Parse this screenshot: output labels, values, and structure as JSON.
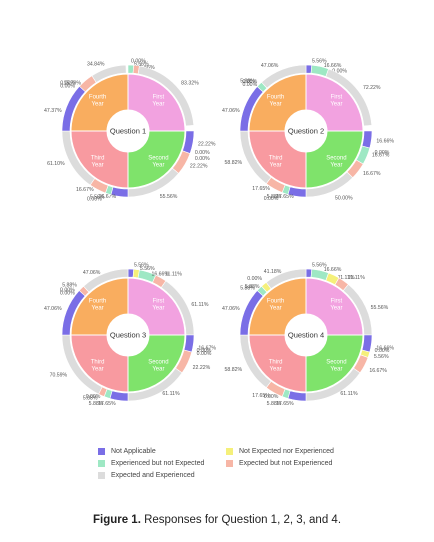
{
  "caption": {
    "label": "Figure 1.",
    "text": "Responses for Question 1, 2, 3, and 4."
  },
  "colors": {
    "first_year": "#f2a2e0",
    "second_year": "#7fe36b",
    "third_year": "#f89aa0",
    "fourth_year": "#f9ad5f",
    "not_applicable": "#7a6ee6",
    "experienced_not_expected": "#9ee8c4",
    "not_expected_nor_experienced": "#f5f07a",
    "expected_not_experienced": "#f7b6a6",
    "expected_and_experienced": "#dcdcdc"
  },
  "legend": [
    {
      "key": "not_applicable",
      "label": "Not Applicable"
    },
    {
      "key": "not_expected_nor_experienced",
      "label": "Not Expected nor Experienced"
    },
    {
      "key": "experienced_not_expected",
      "label": "Experienced but not Expected"
    },
    {
      "key": "expected_not_experienced",
      "label": "Expected but not Experienced"
    },
    {
      "key": "expected_and_experienced",
      "label": "Expected and Experienced"
    }
  ],
  "chart_data": [
    {
      "type": "pie",
      "title": "Question 1",
      "inner": [
        {
          "label": "First Year",
          "value": 25,
          "color_key": "first_year"
        },
        {
          "label": "Second Year",
          "value": 25,
          "color_key": "second_year"
        },
        {
          "label": "Third Year",
          "value": 25,
          "color_key": "third_year"
        },
        {
          "label": "Fourth Year",
          "value": 25,
          "color_key": "fourth_year"
        }
      ],
      "outer": [
        {
          "label": "0.00%",
          "pct": 0.0,
          "color_key": "not_applicable",
          "year": "First Year"
        },
        {
          "label": "5.56%",
          "pct": 5.56,
          "color_key": "experienced_not_expected",
          "year": "First Year"
        },
        {
          "label": "5.56%",
          "pct": 5.56,
          "color_key": "expected_not_experienced",
          "year": "First Year"
        },
        {
          "label": "83.32%",
          "pct": 83.32,
          "color_key": "expected_and_experienced",
          "year": "First Year"
        },
        {
          "label": "22.22%",
          "pct": 22.22,
          "color_key": "not_applicable",
          "year": "Second Year"
        },
        {
          "label": "0.00%",
          "pct": 0.0,
          "color_key": "experienced_not_expected",
          "year": "Second Year"
        },
        {
          "label": "0.00%",
          "pct": 0.0,
          "color_key": "not_expected_nor_experienced",
          "year": "Second Year"
        },
        {
          "label": "22.22%",
          "pct": 22.22,
          "color_key": "expected_not_experienced",
          "year": "Second Year"
        },
        {
          "label": "55.56%",
          "pct": 55.56,
          "color_key": "expected_and_experienced",
          "year": "Second Year"
        },
        {
          "label": "16.67%",
          "pct": 16.67,
          "color_key": "not_applicable",
          "year": "Third Year"
        },
        {
          "label": "5.56%",
          "pct": 5.56,
          "color_key": "experienced_not_expected",
          "year": "Third Year"
        },
        {
          "label": "0.00%",
          "pct": 0.0,
          "color_key": "not_expected_nor_experienced",
          "year": "Third Year"
        },
        {
          "label": "16.67%",
          "pct": 16.67,
          "color_key": "expected_not_experienced",
          "year": "Third Year"
        },
        {
          "label": "61.10%",
          "pct": 61.1,
          "color_key": "expected_and_experienced",
          "year": "Third Year"
        },
        {
          "label": "47.37%",
          "pct": 47.37,
          "color_key": "not_applicable",
          "year": "Fourth Year"
        },
        {
          "label": "0.00%",
          "pct": 0.0,
          "color_key": "experienced_not_expected",
          "year": "Fourth Year"
        },
        {
          "label": "0.00%",
          "pct": 0.0,
          "color_key": "not_expected_nor_experienced",
          "year": "Fourth Year"
        },
        {
          "label": "15.79%",
          "pct": 15.79,
          "color_key": "expected_not_experienced",
          "year": "Fourth Year"
        },
        {
          "label": "34.84%",
          "pct": 34.84,
          "color_key": "expected_and_experienced",
          "year": "Fourth Year"
        }
      ]
    },
    {
      "type": "pie",
      "title": "Question 2",
      "inner": [
        {
          "label": "First Year",
          "value": 25,
          "color_key": "first_year"
        },
        {
          "label": "Second Year",
          "value": 25,
          "color_key": "second_year"
        },
        {
          "label": "Third Year",
          "value": 25,
          "color_key": "third_year"
        },
        {
          "label": "Fourth Year",
          "value": 25,
          "color_key": "fourth_year"
        }
      ],
      "outer": [
        {
          "label": "5.56%",
          "pct": 5.56,
          "color_key": "not_applicable",
          "year": "First Year"
        },
        {
          "label": "16.66%",
          "pct": 16.66,
          "color_key": "experienced_not_expected",
          "year": "First Year"
        },
        {
          "label": "0.00%",
          "pct": 0.0,
          "color_key": "expected_not_experienced",
          "year": "First Year"
        },
        {
          "label": "72.22%",
          "pct": 72.22,
          "color_key": "expected_and_experienced",
          "year": "First Year"
        },
        {
          "label": "16.66%",
          "pct": 16.66,
          "color_key": "not_applicable",
          "year": "Second Year"
        },
        {
          "label": "0.00%",
          "pct": 0.0,
          "color_key": "not_expected_nor_experienced",
          "year": "Second Year"
        },
        {
          "label": "16.67%",
          "pct": 16.67,
          "color_key": "experienced_not_expected",
          "year": "Second Year"
        },
        {
          "label": "16.67%",
          "pct": 16.67,
          "color_key": "expected_not_experienced",
          "year": "Second Year"
        },
        {
          "label": "50.00%",
          "pct": 50.0,
          "color_key": "expected_and_experienced",
          "year": "Second Year"
        },
        {
          "label": "17.65%",
          "pct": 17.65,
          "color_key": "not_applicable",
          "year": "Third Year"
        },
        {
          "label": "5.88%",
          "pct": 5.88,
          "color_key": "experienced_not_expected",
          "year": "Third Year"
        },
        {
          "label": "0.00%",
          "pct": 0.0,
          "color_key": "not_expected_nor_experienced",
          "year": "Third Year"
        },
        {
          "label": "17.65%",
          "pct": 17.65,
          "color_key": "expected_not_experienced",
          "year": "Third Year"
        },
        {
          "label": "58.82%",
          "pct": 58.82,
          "color_key": "expected_and_experienced",
          "year": "Third Year"
        },
        {
          "label": "47.06%",
          "pct": 47.06,
          "color_key": "not_applicable",
          "year": "Fourth Year"
        },
        {
          "label": "5.88%",
          "pct": 5.88,
          "color_key": "experienced_not_expected",
          "year": "Fourth Year"
        },
        {
          "label": "0.00%",
          "pct": 0.0,
          "color_key": "not_expected_nor_experienced",
          "year": "Fourth Year"
        },
        {
          "label": "0.00%",
          "pct": 0.0,
          "color_key": "expected_not_experienced",
          "year": "Fourth Year"
        },
        {
          "label": "47.06%",
          "pct": 47.06,
          "color_key": "expected_and_experienced",
          "year": "Fourth Year"
        }
      ]
    },
    {
      "type": "pie",
      "title": "Question 3",
      "inner": [
        {
          "label": "First Year",
          "value": 25,
          "color_key": "first_year"
        },
        {
          "label": "Second Year",
          "value": 25,
          "color_key": "second_year"
        },
        {
          "label": "Third Year",
          "value": 25,
          "color_key": "third_year"
        },
        {
          "label": "Fourth Year",
          "value": 25,
          "color_key": "fourth_year"
        }
      ],
      "outer": [
        {
          "label": "5.56%",
          "pct": 5.56,
          "color_key": "not_applicable",
          "year": "First Year"
        },
        {
          "label": "5.56%",
          "pct": 5.56,
          "color_key": "not_expected_nor_experienced",
          "year": "First Year"
        },
        {
          "label": "16.66%",
          "pct": 16.66,
          "color_key": "experienced_not_expected",
          "year": "First Year"
        },
        {
          "label": "11.11%",
          "pct": 11.11,
          "color_key": "expected_not_experienced",
          "year": "First Year"
        },
        {
          "label": "61.11%",
          "pct": 61.11,
          "color_key": "expected_and_experienced",
          "year": "First Year"
        },
        {
          "label": "16.67%",
          "pct": 16.67,
          "color_key": "not_applicable",
          "year": "Second Year"
        },
        {
          "label": "0.00%",
          "pct": 0.0,
          "color_key": "experienced_not_expected",
          "year": "Second Year"
        },
        {
          "label": "0.00%",
          "pct": 0.0,
          "color_key": "not_expected_nor_experienced",
          "year": "Second Year"
        },
        {
          "label": "22.22%",
          "pct": 22.22,
          "color_key": "expected_not_experienced",
          "year": "Second Year"
        },
        {
          "label": "61.11%",
          "pct": 61.11,
          "color_key": "expected_and_experienced",
          "year": "Second Year"
        },
        {
          "label": "17.65%",
          "pct": 17.65,
          "color_key": "not_applicable",
          "year": "Third Year"
        },
        {
          "label": "5.88%",
          "pct": 5.88,
          "color_key": "experienced_not_expected",
          "year": "Third Year"
        },
        {
          "label": "0.00%",
          "pct": 0.0,
          "color_key": "not_expected_nor_experienced",
          "year": "Third Year"
        },
        {
          "label": "5.88%",
          "pct": 5.88,
          "color_key": "expected_not_experienced",
          "year": "Third Year"
        },
        {
          "label": "70.59%",
          "pct": 70.59,
          "color_key": "expected_and_experienced",
          "year": "Third Year"
        },
        {
          "label": "47.06%",
          "pct": 47.06,
          "color_key": "not_applicable",
          "year": "Fourth Year"
        },
        {
          "label": "0.00%",
          "pct": 0.0,
          "color_key": "experienced_not_expected",
          "year": "Fourth Year"
        },
        {
          "label": "0.00%",
          "pct": 0.0,
          "color_key": "not_expected_nor_experienced",
          "year": "Fourth Year"
        },
        {
          "label": "5.88%",
          "pct": 5.88,
          "color_key": "expected_not_experienced",
          "year": "Fourth Year"
        },
        {
          "label": "47.06%",
          "pct": 47.06,
          "color_key": "expected_and_experienced",
          "year": "Fourth Year"
        }
      ]
    },
    {
      "type": "pie",
      "title": "Question 4",
      "inner": [
        {
          "label": "First Year",
          "value": 25,
          "color_key": "first_year"
        },
        {
          "label": "Second Year",
          "value": 25,
          "color_key": "second_year"
        },
        {
          "label": "Third Year",
          "value": 25,
          "color_key": "third_year"
        },
        {
          "label": "Fourth Year",
          "value": 25,
          "color_key": "fourth_year"
        }
      ],
      "outer": [
        {
          "label": "5.56%",
          "pct": 5.56,
          "color_key": "not_applicable",
          "year": "First Year"
        },
        {
          "label": "16.66%",
          "pct": 16.66,
          "color_key": "experienced_not_expected",
          "year": "First Year"
        },
        {
          "label": "11.11%",
          "pct": 11.11,
          "color_key": "not_expected_nor_experienced",
          "year": "First Year"
        },
        {
          "label": "11.11%",
          "pct": 11.11,
          "color_key": "expected_not_experienced",
          "year": "First Year"
        },
        {
          "label": "55.56%",
          "pct": 55.56,
          "color_key": "expected_and_experienced",
          "year": "First Year"
        },
        {
          "label": "16.66%",
          "pct": 16.66,
          "color_key": "not_applicable",
          "year": "Second Year"
        },
        {
          "label": "0.00%",
          "pct": 0.0,
          "color_key": "experienced_not_expected",
          "year": "Second Year"
        },
        {
          "label": "5.56%",
          "pct": 5.56,
          "color_key": "not_expected_nor_experienced",
          "year": "Second Year"
        },
        {
          "label": "16.67%",
          "pct": 16.67,
          "color_key": "expected_not_experienced",
          "year": "Second Year"
        },
        {
          "label": "61.11%",
          "pct": 61.11,
          "color_key": "expected_and_experienced",
          "year": "Second Year"
        },
        {
          "label": "17.65%",
          "pct": 17.65,
          "color_key": "not_applicable",
          "year": "Third Year"
        },
        {
          "label": "5.88%",
          "pct": 5.88,
          "color_key": "experienced_not_expected",
          "year": "Third Year"
        },
        {
          "label": "0.00%",
          "pct": 0.0,
          "color_key": "not_expected_nor_experienced",
          "year": "Third Year"
        },
        {
          "label": "17.65%",
          "pct": 17.65,
          "color_key": "expected_not_experienced",
          "year": "Third Year"
        },
        {
          "label": "58.82%",
          "pct": 58.82,
          "color_key": "expected_and_experienced",
          "year": "Third Year"
        },
        {
          "label": "47.06%",
          "pct": 47.06,
          "color_key": "not_applicable",
          "year": "Fourth Year"
        },
        {
          "label": "5.88%",
          "pct": 5.88,
          "color_key": "experienced_not_expected",
          "year": "Fourth Year"
        },
        {
          "label": "5.88%",
          "pct": 5.88,
          "color_key": "not_expected_nor_experienced",
          "year": "Fourth Year"
        },
        {
          "label": "0.00%",
          "pct": 0.0,
          "color_key": "expected_not_experienced",
          "year": "Fourth Year"
        },
        {
          "label": "41.18%",
          "pct": 41.18,
          "color_key": "expected_and_experienced",
          "year": "Fourth Year"
        }
      ]
    }
  ]
}
